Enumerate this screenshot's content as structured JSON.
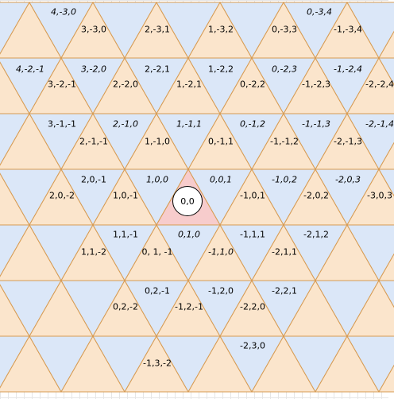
{
  "colors": {
    "up_triangle": "#fbe5cc",
    "down_triangle": "#dbe7f8",
    "highlight_triangle": "#f7cccc",
    "edge": "#d79b52",
    "edge_blue": "#7b8fd4"
  },
  "origin_label": "0,0",
  "labels": [
    {
      "text": "4,-3,0",
      "italic": true
    },
    {
      "text": "0,-3,4",
      "italic": true
    },
    {
      "text": "3,-3,0",
      "italic": false
    },
    {
      "text": "2,-3,1",
      "italic": false
    },
    {
      "text": "1,-3,2",
      "italic": false
    },
    {
      "text": "0,-3,3",
      "italic": false
    },
    {
      "text": "-1,-3,4",
      "italic": false
    },
    {
      "text": "4,-2,-1",
      "italic": true
    },
    {
      "text": "3,-2,0",
      "italic": true
    },
    {
      "text": "2,-2,1",
      "italic": false
    },
    {
      "text": "1,-2,2",
      "italic": false
    },
    {
      "text": "0,-2,3",
      "italic": true
    },
    {
      "text": "-1,-2,4",
      "italic": true
    },
    {
      "text": "3,-2,-1",
      "italic": false
    },
    {
      "text": "2,-2,0",
      "italic": false
    },
    {
      "text": "1,-2,1",
      "italic": false
    },
    {
      "text": "0,-2,2",
      "italic": false
    },
    {
      "text": "-1,-2,3",
      "italic": false
    },
    {
      "text": "-2,-2,4",
      "italic": false
    },
    {
      "text": "3,-1,-1",
      "italic": false
    },
    {
      "text": "2,-1,0",
      "italic": true
    },
    {
      "text": "1,-1,1",
      "italic": true
    },
    {
      "text": "0,-1,2",
      "italic": true
    },
    {
      "text": "-1,-1,3",
      "italic": true
    },
    {
      "text": "-2,-1,4",
      "italic": true
    },
    {
      "text": "2,-1,-1",
      "italic": false
    },
    {
      "text": "1,-1,0",
      "italic": false
    },
    {
      "text": "0,-1,1",
      "italic": false
    },
    {
      "text": "-1,-1,2",
      "italic": false
    },
    {
      "text": "-2,-1,3",
      "italic": false
    },
    {
      "text": "2,0,-1",
      "italic": false
    },
    {
      "text": "1,0,0",
      "italic": true
    },
    {
      "text": "0,0,1",
      "italic": true
    },
    {
      "text": "-1,0,2",
      "italic": true
    },
    {
      "text": "-2,0,3",
      "italic": true
    },
    {
      "text": "2,0,-2",
      "italic": false
    },
    {
      "text": "1,0,-1",
      "italic": false
    },
    {
      "text": "-1,0,1",
      "italic": false
    },
    {
      "text": "-2,0,2",
      "italic": false
    },
    {
      "text": "-3,0,3",
      "italic": false
    },
    {
      "text": "1,1,-1",
      "italic": false
    },
    {
      "text": "0,1,0",
      "italic": true
    },
    {
      "text": "-1,1,1",
      "italic": false
    },
    {
      "text": "-2,1,2",
      "italic": false
    },
    {
      "text": "1,1,-2",
      "italic": false
    },
    {
      "text": "0, 1, -1",
      "italic": false
    },
    {
      "text": "-1,1,0",
      "italic": true
    },
    {
      "text": "-2,1,1",
      "italic": false
    },
    {
      "text": "0,2,-1",
      "italic": false
    },
    {
      "text": "-1,2,0",
      "italic": false
    },
    {
      "text": "-2,2,1",
      "italic": false
    },
    {
      "text": "0,2,-2",
      "italic": false
    },
    {
      "text": "-1,2,-1",
      "italic": false
    },
    {
      "text": "-2,2,0",
      "italic": false
    },
    {
      "text": "-2,3,0",
      "italic": false
    },
    {
      "text": "-1,3,-2",
      "italic": false
    }
  ]
}
